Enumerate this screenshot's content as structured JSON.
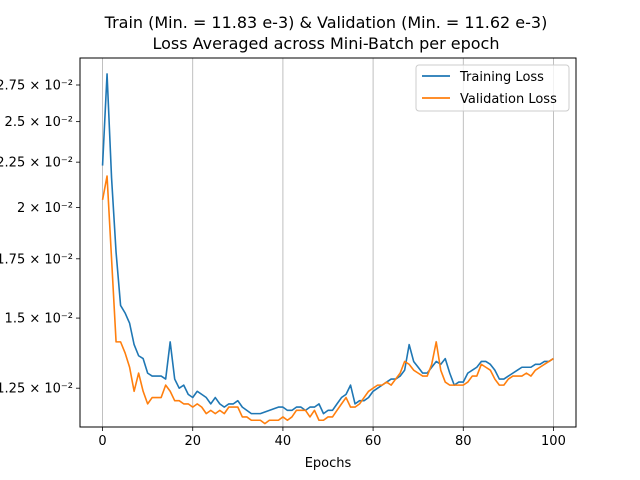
{
  "chart_data": {
    "type": "line",
    "title_line1": "Train (Min. =  11.83 e-3) & Validation (Min. =  11.62 e-3)",
    "title_line2": "Loss Averaged across Mini-Batch per epoch",
    "xlabel": "Epochs",
    "ylabel": "",
    "xlim": [
      -5,
      105
    ],
    "ylim": [
      0.0113,
      0.0295
    ],
    "yscale": "log",
    "grid": "x-only",
    "legend_position": "top-right",
    "x_ticks": [
      0,
      20,
      40,
      60,
      80,
      100
    ],
    "y_ticks": [
      {
        "value": 0.0125,
        "label": "1.25 × 10⁻²"
      },
      {
        "value": 0.015,
        "label": "1.5 × 10⁻²"
      },
      {
        "value": 0.0175,
        "label": "1.75 × 10⁻²"
      },
      {
        "value": 0.02,
        "label": "2 × 10⁻²"
      },
      {
        "value": 0.0225,
        "label": "2.25 × 10⁻²"
      },
      {
        "value": 0.025,
        "label": "2.5 × 10⁻²"
      },
      {
        "value": 0.0275,
        "label": "2.75 × 10⁻²"
      }
    ],
    "series": [
      {
        "name": "Training Loss",
        "color": "#1f77b4",
        "x": [
          0,
          1,
          2,
          3,
          4,
          5,
          6,
          7,
          8,
          9,
          10,
          11,
          12,
          13,
          14,
          15,
          16,
          17,
          18,
          19,
          20,
          21,
          22,
          23,
          24,
          25,
          26,
          27,
          28,
          29,
          30,
          31,
          32,
          33,
          34,
          35,
          36,
          37,
          38,
          39,
          40,
          41,
          42,
          43,
          44,
          45,
          46,
          47,
          48,
          49,
          50,
          51,
          52,
          53,
          54,
          55,
          56,
          57,
          58,
          59,
          60,
          61,
          62,
          63,
          64,
          65,
          66,
          67,
          68,
          69,
          70,
          71,
          72,
          73,
          74,
          75,
          76,
          77,
          78,
          79,
          80,
          81,
          82,
          83,
          84,
          85,
          86,
          87,
          88,
          89,
          90,
          91,
          92,
          93,
          94,
          95,
          96,
          97,
          98,
          99,
          100
        ],
        "values": [
          0.0223,
          0.0283,
          0.0216,
          0.0178,
          0.0155,
          0.0152,
          0.0148,
          0.014,
          0.0136,
          0.0135,
          0.013,
          0.0129,
          0.0129,
          0.0129,
          0.0128,
          0.0141,
          0.0128,
          0.0125,
          0.0126,
          0.0123,
          0.0122,
          0.0124,
          0.0123,
          0.0122,
          0.012,
          0.0122,
          0.012,
          0.0119,
          0.012,
          0.012,
          0.0121,
          0.0119,
          0.0118,
          0.0117,
          0.0117,
          0.0117,
          0.01175,
          0.0118,
          0.01185,
          0.0119,
          0.0119,
          0.0118,
          0.0118,
          0.0119,
          0.0119,
          0.0118,
          0.0119,
          0.0119,
          0.012,
          0.0117,
          0.0118,
          0.0118,
          0.012,
          0.0122,
          0.0123,
          0.0126,
          0.012,
          0.0121,
          0.0121,
          0.0122,
          0.0124,
          0.0125,
          0.0126,
          0.0127,
          0.0128,
          0.0128,
          0.0129,
          0.0131,
          0.014,
          0.0134,
          0.0132,
          0.013,
          0.013,
          0.0132,
          0.0134,
          0.0133,
          0.0135,
          0.013,
          0.0126,
          0.0127,
          0.0127,
          0.013,
          0.0131,
          0.0132,
          0.0134,
          0.0134,
          0.0133,
          0.0131,
          0.0128,
          0.0128,
          0.0129,
          0.013,
          0.0131,
          0.0132,
          0.0132,
          0.0132,
          0.0133,
          0.0133,
          0.0134,
          0.0134,
          0.0135
        ]
      },
      {
        "name": "Validation Loss",
        "color": "#ff7f0e",
        "x": [
          0,
          1,
          2,
          3,
          4,
          5,
          6,
          7,
          8,
          9,
          10,
          11,
          12,
          13,
          14,
          15,
          16,
          17,
          18,
          19,
          20,
          21,
          22,
          23,
          24,
          25,
          26,
          27,
          28,
          29,
          30,
          31,
          32,
          33,
          34,
          35,
          36,
          37,
          38,
          39,
          40,
          41,
          42,
          43,
          44,
          45,
          46,
          47,
          48,
          49,
          50,
          51,
          52,
          53,
          54,
          55,
          56,
          57,
          58,
          59,
          60,
          61,
          62,
          63,
          64,
          65,
          66,
          67,
          68,
          69,
          70,
          71,
          72,
          73,
          74,
          75,
          76,
          77,
          78,
          79,
          80,
          81,
          82,
          83,
          84,
          85,
          86,
          87,
          88,
          89,
          90,
          91,
          92,
          93,
          94,
          95,
          96,
          97,
          98,
          99,
          100
        ],
        "values": [
          0.0204,
          0.0217,
          0.0175,
          0.0141,
          0.0141,
          0.0137,
          0.0132,
          0.0124,
          0.013,
          0.0124,
          0.012,
          0.0122,
          0.0122,
          0.0122,
          0.0126,
          0.0124,
          0.0121,
          0.0121,
          0.012,
          0.012,
          0.0119,
          0.012,
          0.0119,
          0.0117,
          0.0118,
          0.0117,
          0.0118,
          0.0117,
          0.0119,
          0.0119,
          0.0119,
          0.0116,
          0.0116,
          0.0115,
          0.0115,
          0.0115,
          0.0114,
          0.0115,
          0.0115,
          0.0115,
          0.0116,
          0.0115,
          0.0116,
          0.0118,
          0.0118,
          0.0118,
          0.0116,
          0.0118,
          0.0115,
          0.0115,
          0.0116,
          0.0116,
          0.0118,
          0.012,
          0.0122,
          0.0119,
          0.0119,
          0.012,
          0.0122,
          0.0124,
          0.0125,
          0.0126,
          0.0126,
          0.0127,
          0.0126,
          0.0128,
          0.013,
          0.0134,
          0.0133,
          0.0131,
          0.013,
          0.0129,
          0.0129,
          0.0133,
          0.0141,
          0.0131,
          0.0127,
          0.0126,
          0.0126,
          0.0126,
          0.0126,
          0.0127,
          0.0129,
          0.0129,
          0.0133,
          0.0132,
          0.0131,
          0.0128,
          0.0126,
          0.0126,
          0.0128,
          0.0129,
          0.0129,
          0.0129,
          0.013,
          0.0129,
          0.0131,
          0.0132,
          0.0133,
          0.0134,
          0.0135
        ]
      }
    ]
  }
}
